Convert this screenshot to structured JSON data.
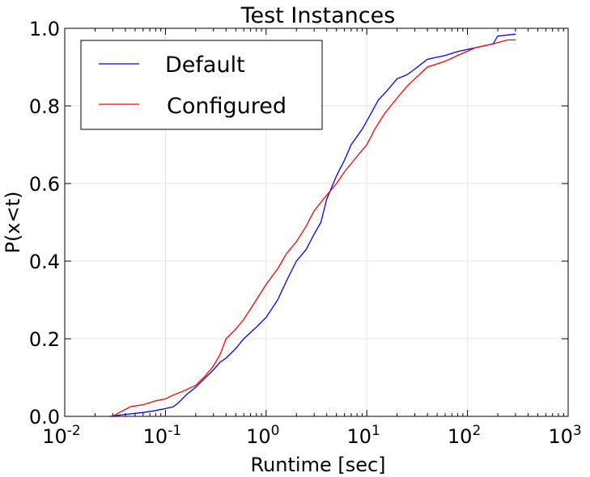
{
  "chart_data": {
    "type": "line",
    "title": "Test Instances",
    "xlabel": "Runtime [sec]",
    "ylabel": "P(x<t)",
    "xscale": "log",
    "xlim": [
      0.01,
      1000
    ],
    "ylim": [
      0.0,
      1.0
    ],
    "grid": true,
    "legend_position": "top-left",
    "x_ticks": [
      {
        "base": "10",
        "exp": "-2"
      },
      {
        "base": "10",
        "exp": "-1"
      },
      {
        "base": "10",
        "exp": "0"
      },
      {
        "base": "10",
        "exp": "1"
      },
      {
        "base": "10",
        "exp": "2"
      },
      {
        "base": "10",
        "exp": "3"
      }
    ],
    "y_ticks": [
      "0.0",
      "0.2",
      "0.4",
      "0.6",
      "0.8",
      "1.0"
    ],
    "series": [
      {
        "name": "Default",
        "color": "#0000ff",
        "points": [
          [
            0.028,
            0.0
          ],
          [
            0.04,
            0.005
          ],
          [
            0.06,
            0.01
          ],
          [
            0.08,
            0.015
          ],
          [
            0.1,
            0.02
          ],
          [
            0.12,
            0.025
          ],
          [
            0.135,
            0.035
          ],
          [
            0.16,
            0.055
          ],
          [
            0.2,
            0.075
          ],
          [
            0.25,
            0.1
          ],
          [
            0.3,
            0.12
          ],
          [
            0.35,
            0.14
          ],
          [
            0.4,
            0.15
          ],
          [
            0.5,
            0.175
          ],
          [
            0.6,
            0.2
          ],
          [
            0.8,
            0.23
          ],
          [
            1.0,
            0.255
          ],
          [
            1.3,
            0.3
          ],
          [
            1.6,
            0.35
          ],
          [
            2.0,
            0.4
          ],
          [
            2.5,
            0.43
          ],
          [
            3.0,
            0.47
          ],
          [
            3.5,
            0.5
          ],
          [
            4.0,
            0.56
          ],
          [
            5.0,
            0.62
          ],
          [
            6.0,
            0.66
          ],
          [
            7.0,
            0.7
          ],
          [
            9.0,
            0.74
          ],
          [
            11.0,
            0.78
          ],
          [
            13.0,
            0.815
          ],
          [
            16.0,
            0.84
          ],
          [
            20.0,
            0.87
          ],
          [
            25.0,
            0.88
          ],
          [
            30.0,
            0.895
          ],
          [
            40.0,
            0.92
          ],
          [
            60.0,
            0.93
          ],
          [
            80.0,
            0.94
          ],
          [
            120.0,
            0.95
          ],
          [
            180.0,
            0.96
          ],
          [
            200.0,
            0.98
          ],
          [
            300.0,
            0.985
          ]
        ]
      },
      {
        "name": "Configured",
        "color": "#ff0000",
        "points": [
          [
            0.03,
            0.0
          ],
          [
            0.035,
            0.01
          ],
          [
            0.045,
            0.025
          ],
          [
            0.06,
            0.03
          ],
          [
            0.08,
            0.04
          ],
          [
            0.1,
            0.045
          ],
          [
            0.12,
            0.055
          ],
          [
            0.15,
            0.065
          ],
          [
            0.2,
            0.08
          ],
          [
            0.25,
            0.105
          ],
          [
            0.3,
            0.13
          ],
          [
            0.35,
            0.16
          ],
          [
            0.4,
            0.2
          ],
          [
            0.5,
            0.225
          ],
          [
            0.6,
            0.25
          ],
          [
            0.8,
            0.3
          ],
          [
            1.0,
            0.34
          ],
          [
            1.3,
            0.38
          ],
          [
            1.6,
            0.42
          ],
          [
            2.0,
            0.45
          ],
          [
            2.5,
            0.49
          ],
          [
            3.0,
            0.53
          ],
          [
            4.0,
            0.57
          ],
          [
            5.0,
            0.6
          ],
          [
            6.0,
            0.63
          ],
          [
            8.0,
            0.67
          ],
          [
            10.0,
            0.7
          ],
          [
            12.0,
            0.74
          ],
          [
            15.0,
            0.78
          ],
          [
            20.0,
            0.82
          ],
          [
            25.0,
            0.85
          ],
          [
            30.0,
            0.87
          ],
          [
            40.0,
            0.9
          ],
          [
            60.0,
            0.915
          ],
          [
            80.0,
            0.93
          ],
          [
            120.0,
            0.95
          ],
          [
            180.0,
            0.96
          ],
          [
            250.0,
            0.97
          ],
          [
            300.0,
            0.97
          ]
        ]
      }
    ]
  }
}
